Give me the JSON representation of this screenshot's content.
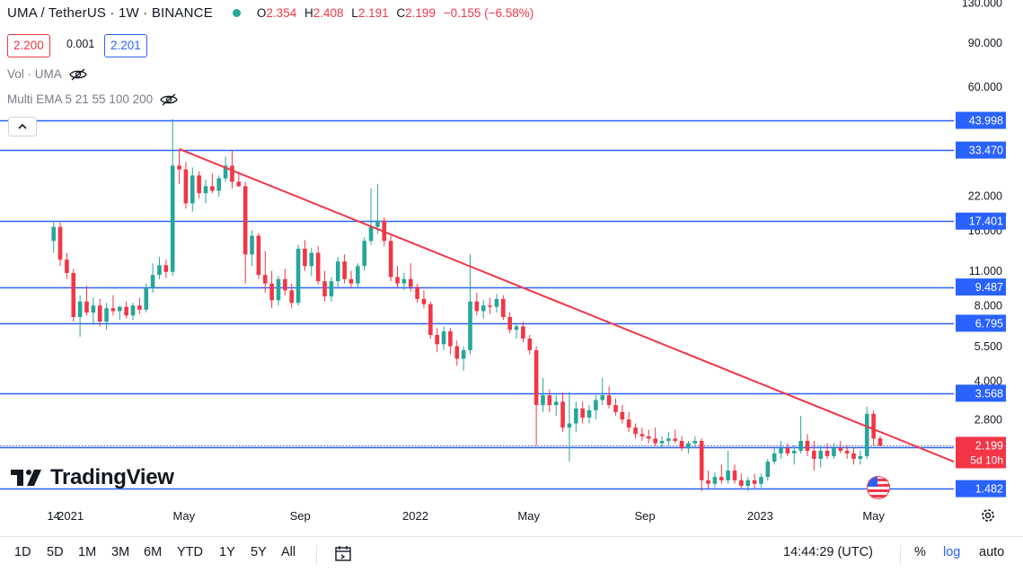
{
  "header": {
    "title": "UMA / TetherUS · 1W · BINANCE",
    "status_dot_color": "#26a69a",
    "ohlc": [
      {
        "label": "O",
        "value": "2.354"
      },
      {
        "label": "H",
        "value": "2.408"
      },
      {
        "label": "L",
        "value": "2.191"
      },
      {
        "label": "C",
        "value": "2.199"
      },
      {
        "label": "",
        "value": "−0.155 (−6.58%)"
      }
    ]
  },
  "quote": {
    "bid": "2.200",
    "spread": "0.001",
    "ask": "2.201"
  },
  "indicators": [
    {
      "label": "Vol · UMA",
      "icon": "eye-off-icon"
    },
    {
      "label": "Multi EMA 5 21 55 100 200",
      "icon": "eye-off-icon"
    }
  ],
  "logo": {
    "text": "TradingView"
  },
  "bottom_bar": {
    "ranges": [
      "1D",
      "5D",
      "1M",
      "3M",
      "6M",
      "YTD",
      "1Y",
      "5Y",
      "All"
    ],
    "time": "14:44:29 (UTC)",
    "percent": "%",
    "log": "log",
    "auto": "auto"
  },
  "colors": {
    "up": "#26a69a",
    "down": "#f23645",
    "level": "#2962ff",
    "trendline": "#f23645",
    "text": "#131722"
  },
  "chart_data": {
    "type": "candlestick",
    "symbol": "UMA / TetherUS",
    "interval": "1W",
    "exchange": "BINANCE",
    "y_scale": "log",
    "ylim": [
      1.3,
      130
    ],
    "y_ticks": [
      "130.000",
      "90.000",
      "60.000",
      "22.000",
      "16.000",
      "11.000",
      "8.000",
      "5.500",
      "4.000",
      "2.800"
    ],
    "x_range": [
      "2020-12-01",
      "2023-07-25"
    ],
    "x_ticks": [
      {
        "date": "2020-12-14",
        "label": "14"
      },
      {
        "date": "2021-01-01",
        "label": "2021"
      },
      {
        "date": "2021-05-01",
        "label": "May"
      },
      {
        "date": "2021-09-01",
        "label": "Sep"
      },
      {
        "date": "2022-01-01",
        "label": "2022"
      },
      {
        "date": "2022-05-01",
        "label": "May"
      },
      {
        "date": "2022-09-01",
        "label": "Sep"
      },
      {
        "date": "2023-01-01",
        "label": "2023"
      },
      {
        "date": "2023-05-01",
        "label": "May"
      }
    ],
    "horizontal_levels": [
      {
        "value": 43.998,
        "label": "43.998"
      },
      {
        "value": 33.47,
        "label": "33.470"
      },
      {
        "value": 17.401,
        "label": "17.401"
      },
      {
        "value": 9.487,
        "label": "9.487"
      },
      {
        "value": 6.795,
        "label": "6.795"
      },
      {
        "value": 3.568,
        "label": "3.568"
      },
      {
        "value": 2.173,
        "label": "2.173"
      },
      {
        "value": 1.482,
        "label": "1.482"
      }
    ],
    "last_price": {
      "value": 2.199,
      "label": "2.199",
      "countdown": "5d 10h"
    },
    "trendline": {
      "from": {
        "date": "2021-04-26",
        "value": 33.8
      },
      "to": {
        "date": "2023-07-25",
        "value": 1.9
      }
    },
    "candles": [
      {
        "d": "2020-12-14",
        "o": 14.5,
        "h": 17.5,
        "l": 13.0,
        "c": 16.5
      },
      {
        "d": "2020-12-21",
        "o": 16.5,
        "h": 17.2,
        "l": 11.5,
        "c": 12.2
      },
      {
        "d": "2020-12-28",
        "o": 12.2,
        "h": 13.0,
        "l": 10.2,
        "c": 10.8
      },
      {
        "d": "2021-01-04",
        "o": 10.8,
        "h": 11.2,
        "l": 6.9,
        "c": 7.2
      },
      {
        "d": "2021-01-11",
        "o": 7.2,
        "h": 8.8,
        "l": 6.0,
        "c": 8.3
      },
      {
        "d": "2021-01-18",
        "o": 8.3,
        "h": 9.6,
        "l": 7.3,
        "c": 7.5
      },
      {
        "d": "2021-01-25",
        "o": 7.5,
        "h": 8.6,
        "l": 6.7,
        "c": 8.0
      },
      {
        "d": "2021-02-01",
        "o": 8.0,
        "h": 8.5,
        "l": 6.6,
        "c": 6.9
      },
      {
        "d": "2021-02-08",
        "o": 6.9,
        "h": 8.2,
        "l": 6.4,
        "c": 7.8
      },
      {
        "d": "2021-02-15",
        "o": 7.8,
        "h": 8.8,
        "l": 7.3,
        "c": 7.6
      },
      {
        "d": "2021-02-22",
        "o": 7.6,
        "h": 8.0,
        "l": 7.0,
        "c": 7.9
      },
      {
        "d": "2021-03-01",
        "o": 7.9,
        "h": 8.3,
        "l": 7.1,
        "c": 7.3
      },
      {
        "d": "2021-03-08",
        "o": 7.3,
        "h": 8.2,
        "l": 7.0,
        "c": 8.0
      },
      {
        "d": "2021-03-15",
        "o": 8.0,
        "h": 8.6,
        "l": 7.4,
        "c": 7.7
      },
      {
        "d": "2021-03-22",
        "o": 7.7,
        "h": 9.8,
        "l": 7.5,
        "c": 9.4
      },
      {
        "d": "2021-03-29",
        "o": 9.4,
        "h": 11.8,
        "l": 9.0,
        "c": 10.6
      },
      {
        "d": "2021-04-05",
        "o": 10.6,
        "h": 12.5,
        "l": 10.2,
        "c": 11.6
      },
      {
        "d": "2021-04-12",
        "o": 11.6,
        "h": 12.2,
        "l": 10.3,
        "c": 10.9
      },
      {
        "d": "2021-04-19",
        "o": 10.9,
        "h": 44.5,
        "l": 10.5,
        "c": 29.0
      },
      {
        "d": "2021-04-26",
        "o": 29.0,
        "h": 33.8,
        "l": 24.5,
        "c": 28.0
      },
      {
        "d": "2021-05-03",
        "o": 28.0,
        "h": 30.0,
        "l": 19.5,
        "c": 20.5
      },
      {
        "d": "2021-05-10",
        "o": 20.5,
        "h": 28.5,
        "l": 19.0,
        "c": 26.5
      },
      {
        "d": "2021-05-17",
        "o": 26.5,
        "h": 27.5,
        "l": 21.5,
        "c": 22.5
      },
      {
        "d": "2021-05-24",
        "o": 22.5,
        "h": 25.5,
        "l": 20.5,
        "c": 24.0
      },
      {
        "d": "2021-05-31",
        "o": 24.0,
        "h": 27.0,
        "l": 22.5,
        "c": 23.0
      },
      {
        "d": "2021-06-07",
        "o": 23.0,
        "h": 26.5,
        "l": 21.8,
        "c": 25.8
      },
      {
        "d": "2021-06-14",
        "o": 25.8,
        "h": 31.5,
        "l": 25.0,
        "c": 29.0
      },
      {
        "d": "2021-06-21",
        "o": 29.0,
        "h": 33.5,
        "l": 23.5,
        "c": 25.0
      },
      {
        "d": "2021-06-28",
        "o": 25.0,
        "h": 27.0,
        "l": 23.8,
        "c": 24.0
      },
      {
        "d": "2021-07-05",
        "o": 24.0,
        "h": 25.0,
        "l": 9.8,
        "c": 12.8
      },
      {
        "d": "2021-07-12",
        "o": 12.8,
        "h": 16.0,
        "l": 11.5,
        "c": 15.2
      },
      {
        "d": "2021-07-19",
        "o": 15.2,
        "h": 15.6,
        "l": 10.2,
        "c": 10.6
      },
      {
        "d": "2021-07-26",
        "o": 10.6,
        "h": 13.2,
        "l": 9.0,
        "c": 9.8
      },
      {
        "d": "2021-08-02",
        "o": 9.8,
        "h": 11.0,
        "l": 7.8,
        "c": 8.4
      },
      {
        "d": "2021-08-09",
        "o": 8.4,
        "h": 10.5,
        "l": 8.0,
        "c": 10.2
      },
      {
        "d": "2021-08-16",
        "o": 10.2,
        "h": 11.2,
        "l": 8.8,
        "c": 9.2
      },
      {
        "d": "2021-08-23",
        "o": 9.2,
        "h": 9.8,
        "l": 7.8,
        "c": 8.2
      },
      {
        "d": "2021-08-30",
        "o": 8.2,
        "h": 14.0,
        "l": 8.0,
        "c": 13.5
      },
      {
        "d": "2021-09-06",
        "o": 13.5,
        "h": 14.6,
        "l": 11.0,
        "c": 11.5
      },
      {
        "d": "2021-09-13",
        "o": 11.5,
        "h": 13.6,
        "l": 10.5,
        "c": 13.0
      },
      {
        "d": "2021-09-20",
        "o": 13.0,
        "h": 13.8,
        "l": 9.7,
        "c": 10.0
      },
      {
        "d": "2021-09-27",
        "o": 10.0,
        "h": 11.0,
        "l": 8.3,
        "c": 8.7
      },
      {
        "d": "2021-10-04",
        "o": 8.7,
        "h": 10.4,
        "l": 8.3,
        "c": 10.0
      },
      {
        "d": "2021-10-11",
        "o": 10.0,
        "h": 12.5,
        "l": 9.5,
        "c": 12.0
      },
      {
        "d": "2021-10-18",
        "o": 12.0,
        "h": 12.8,
        "l": 9.8,
        "c": 10.2
      },
      {
        "d": "2021-10-25",
        "o": 10.2,
        "h": 11.0,
        "l": 9.4,
        "c": 9.8
      },
      {
        "d": "2021-11-01",
        "o": 9.8,
        "h": 11.8,
        "l": 9.5,
        "c": 11.5
      },
      {
        "d": "2021-11-08",
        "o": 11.5,
        "h": 15.0,
        "l": 11.0,
        "c": 14.5
      },
      {
        "d": "2021-11-15",
        "o": 14.5,
        "h": 23.5,
        "l": 14.0,
        "c": 16.5
      },
      {
        "d": "2021-11-22",
        "o": 16.5,
        "h": 24.5,
        "l": 15.5,
        "c": 17.5
      },
      {
        "d": "2021-11-29",
        "o": 17.5,
        "h": 18.0,
        "l": 13.8,
        "c": 14.5
      },
      {
        "d": "2021-12-06",
        "o": 14.5,
        "h": 15.2,
        "l": 10.0,
        "c": 10.4
      },
      {
        "d": "2021-12-13",
        "o": 10.4,
        "h": 11.5,
        "l": 9.4,
        "c": 9.8
      },
      {
        "d": "2021-12-20",
        "o": 9.8,
        "h": 10.8,
        "l": 9.2,
        "c": 10.2
      },
      {
        "d": "2021-12-27",
        "o": 10.2,
        "h": 11.8,
        "l": 9.1,
        "c": 9.5
      },
      {
        "d": "2022-01-03",
        "o": 9.5,
        "h": 9.8,
        "l": 8.2,
        "c": 8.5
      },
      {
        "d": "2022-01-10",
        "o": 8.5,
        "h": 9.2,
        "l": 7.8,
        "c": 8.1
      },
      {
        "d": "2022-01-17",
        "o": 8.1,
        "h": 8.3,
        "l": 5.9,
        "c": 6.1
      },
      {
        "d": "2022-01-24",
        "o": 6.1,
        "h": 6.5,
        "l": 5.2,
        "c": 5.6
      },
      {
        "d": "2022-01-31",
        "o": 5.6,
        "h": 6.6,
        "l": 5.3,
        "c": 6.3
      },
      {
        "d": "2022-02-07",
        "o": 6.3,
        "h": 6.5,
        "l": 5.1,
        "c": 5.5
      },
      {
        "d": "2022-02-14",
        "o": 5.5,
        "h": 5.8,
        "l": 4.6,
        "c": 4.9
      },
      {
        "d": "2022-02-21",
        "o": 4.9,
        "h": 5.5,
        "l": 4.4,
        "c": 5.3
      },
      {
        "d": "2022-02-28",
        "o": 5.3,
        "h": 12.8,
        "l": 5.1,
        "c": 8.3
      },
      {
        "d": "2022-03-07",
        "o": 8.3,
        "h": 9.0,
        "l": 7.3,
        "c": 7.6
      },
      {
        "d": "2022-03-14",
        "o": 7.6,
        "h": 8.4,
        "l": 7.1,
        "c": 8.0
      },
      {
        "d": "2022-03-21",
        "o": 8.0,
        "h": 8.6,
        "l": 7.4,
        "c": 7.9
      },
      {
        "d": "2022-03-28",
        "o": 7.9,
        "h": 8.9,
        "l": 7.5,
        "c": 8.5
      },
      {
        "d": "2022-04-04",
        "o": 8.5,
        "h": 8.8,
        "l": 7.0,
        "c": 7.2
      },
      {
        "d": "2022-04-11",
        "o": 7.2,
        "h": 7.5,
        "l": 6.2,
        "c": 6.4
      },
      {
        "d": "2022-04-18",
        "o": 6.4,
        "h": 6.8,
        "l": 5.9,
        "c": 6.6
      },
      {
        "d": "2022-04-25",
        "o": 6.6,
        "h": 6.9,
        "l": 5.7,
        "c": 5.9
      },
      {
        "d": "2022-05-02",
        "o": 5.9,
        "h": 6.1,
        "l": 5.1,
        "c": 5.3
      },
      {
        "d": "2022-05-09",
        "o": 5.3,
        "h": 5.5,
        "l": 2.2,
        "c": 3.2
      },
      {
        "d": "2022-05-16",
        "o": 3.2,
        "h": 4.1,
        "l": 3.0,
        "c": 3.5
      },
      {
        "d": "2022-05-23",
        "o": 3.5,
        "h": 3.7,
        "l": 3.0,
        "c": 3.2
      },
      {
        "d": "2022-05-30",
        "o": 3.2,
        "h": 3.5,
        "l": 2.9,
        "c": 3.3
      },
      {
        "d": "2022-06-06",
        "o": 3.3,
        "h": 3.6,
        "l": 2.5,
        "c": 2.6
      },
      {
        "d": "2022-06-13",
        "o": 2.6,
        "h": 3.6,
        "l": 1.9,
        "c": 2.7
      },
      {
        "d": "2022-06-20",
        "o": 2.7,
        "h": 3.3,
        "l": 2.5,
        "c": 3.1
      },
      {
        "d": "2022-06-27",
        "o": 3.1,
        "h": 3.3,
        "l": 2.7,
        "c": 2.85
      },
      {
        "d": "2022-07-04",
        "o": 2.85,
        "h": 3.2,
        "l": 2.7,
        "c": 3.05
      },
      {
        "d": "2022-07-11",
        "o": 3.05,
        "h": 3.5,
        "l": 2.8,
        "c": 3.35
      },
      {
        "d": "2022-07-18",
        "o": 3.35,
        "h": 4.1,
        "l": 3.2,
        "c": 3.5
      },
      {
        "d": "2022-07-25",
        "o": 3.5,
        "h": 3.8,
        "l": 3.1,
        "c": 3.2
      },
      {
        "d": "2022-08-01",
        "o": 3.2,
        "h": 3.4,
        "l": 2.9,
        "c": 3.0
      },
      {
        "d": "2022-08-08",
        "o": 3.0,
        "h": 3.2,
        "l": 2.7,
        "c": 2.8
      },
      {
        "d": "2022-08-15",
        "o": 2.8,
        "h": 3.0,
        "l": 2.5,
        "c": 2.6
      },
      {
        "d": "2022-08-22",
        "o": 2.6,
        "h": 2.7,
        "l": 2.35,
        "c": 2.45
      },
      {
        "d": "2022-08-29",
        "o": 2.45,
        "h": 2.6,
        "l": 2.3,
        "c": 2.4
      },
      {
        "d": "2022-09-05",
        "o": 2.4,
        "h": 2.55,
        "l": 2.25,
        "c": 2.35
      },
      {
        "d": "2022-09-12",
        "o": 2.35,
        "h": 2.6,
        "l": 2.2,
        "c": 2.25
      },
      {
        "d": "2022-09-19",
        "o": 2.25,
        "h": 2.4,
        "l": 2.15,
        "c": 2.3
      },
      {
        "d": "2022-09-26",
        "o": 2.3,
        "h": 2.5,
        "l": 2.2,
        "c": 2.35
      },
      {
        "d": "2022-10-03",
        "o": 2.35,
        "h": 2.55,
        "l": 2.25,
        "c": 2.3
      },
      {
        "d": "2022-10-10",
        "o": 2.3,
        "h": 2.4,
        "l": 2.1,
        "c": 2.15
      },
      {
        "d": "2022-10-17",
        "o": 2.15,
        "h": 2.3,
        "l": 2.05,
        "c": 2.25
      },
      {
        "d": "2022-10-24",
        "o": 2.25,
        "h": 2.4,
        "l": 2.15,
        "c": 2.3
      },
      {
        "d": "2022-10-31",
        "o": 2.3,
        "h": 2.35,
        "l": 1.45,
        "c": 1.6
      },
      {
        "d": "2022-11-07",
        "o": 1.6,
        "h": 1.75,
        "l": 1.48,
        "c": 1.55
      },
      {
        "d": "2022-11-14",
        "o": 1.55,
        "h": 1.72,
        "l": 1.5,
        "c": 1.65
      },
      {
        "d": "2022-11-21",
        "o": 1.65,
        "h": 1.85,
        "l": 1.55,
        "c": 1.6
      },
      {
        "d": "2022-11-28",
        "o": 1.6,
        "h": 2.1,
        "l": 1.55,
        "c": 1.75
      },
      {
        "d": "2022-12-05",
        "o": 1.75,
        "h": 1.85,
        "l": 1.55,
        "c": 1.6
      },
      {
        "d": "2022-12-12",
        "o": 1.6,
        "h": 1.7,
        "l": 1.48,
        "c": 1.52
      },
      {
        "d": "2022-12-19",
        "o": 1.52,
        "h": 1.65,
        "l": 1.45,
        "c": 1.6
      },
      {
        "d": "2022-12-26",
        "o": 1.6,
        "h": 1.7,
        "l": 1.48,
        "c": 1.55
      },
      {
        "d": "2023-01-02",
        "o": 1.55,
        "h": 1.7,
        "l": 1.5,
        "c": 1.65
      },
      {
        "d": "2023-01-09",
        "o": 1.65,
        "h": 1.95,
        "l": 1.6,
        "c": 1.9
      },
      {
        "d": "2023-01-16",
        "o": 1.9,
        "h": 2.15,
        "l": 1.85,
        "c": 2.05
      },
      {
        "d": "2023-01-23",
        "o": 2.05,
        "h": 2.3,
        "l": 1.95,
        "c": 2.15
      },
      {
        "d": "2023-01-30",
        "o": 2.15,
        "h": 2.25,
        "l": 2.0,
        "c": 2.05
      },
      {
        "d": "2023-02-06",
        "o": 2.05,
        "h": 2.2,
        "l": 1.85,
        "c": 2.1
      },
      {
        "d": "2023-02-13",
        "o": 2.1,
        "h": 2.9,
        "l": 2.05,
        "c": 2.3
      },
      {
        "d": "2023-02-20",
        "o": 2.3,
        "h": 2.45,
        "l": 2.0,
        "c": 2.1
      },
      {
        "d": "2023-02-27",
        "o": 2.1,
        "h": 2.3,
        "l": 1.75,
        "c": 1.95
      },
      {
        "d": "2023-03-06",
        "o": 1.95,
        "h": 2.2,
        "l": 1.8,
        "c": 2.1
      },
      {
        "d": "2023-03-13",
        "o": 2.1,
        "h": 2.25,
        "l": 1.95,
        "c": 2.0
      },
      {
        "d": "2023-03-20",
        "o": 2.0,
        "h": 2.25,
        "l": 1.95,
        "c": 2.15
      },
      {
        "d": "2023-03-27",
        "o": 2.15,
        "h": 2.3,
        "l": 2.05,
        "c": 2.1
      },
      {
        "d": "2023-04-03",
        "o": 2.1,
        "h": 2.2,
        "l": 1.95,
        "c": 2.05
      },
      {
        "d": "2023-04-10",
        "o": 2.05,
        "h": 2.15,
        "l": 1.85,
        "c": 1.95
      },
      {
        "d": "2023-04-17",
        "o": 1.95,
        "h": 2.1,
        "l": 1.85,
        "c": 2.0
      },
      {
        "d": "2023-04-24",
        "o": 2.0,
        "h": 3.15,
        "l": 1.95,
        "c": 2.95
      },
      {
        "d": "2023-05-01",
        "o": 2.95,
        "h": 3.05,
        "l": 2.2,
        "c": 2.35
      },
      {
        "d": "2023-05-08",
        "o": 2.354,
        "h": 2.408,
        "l": 2.191,
        "c": 2.199
      }
    ]
  }
}
